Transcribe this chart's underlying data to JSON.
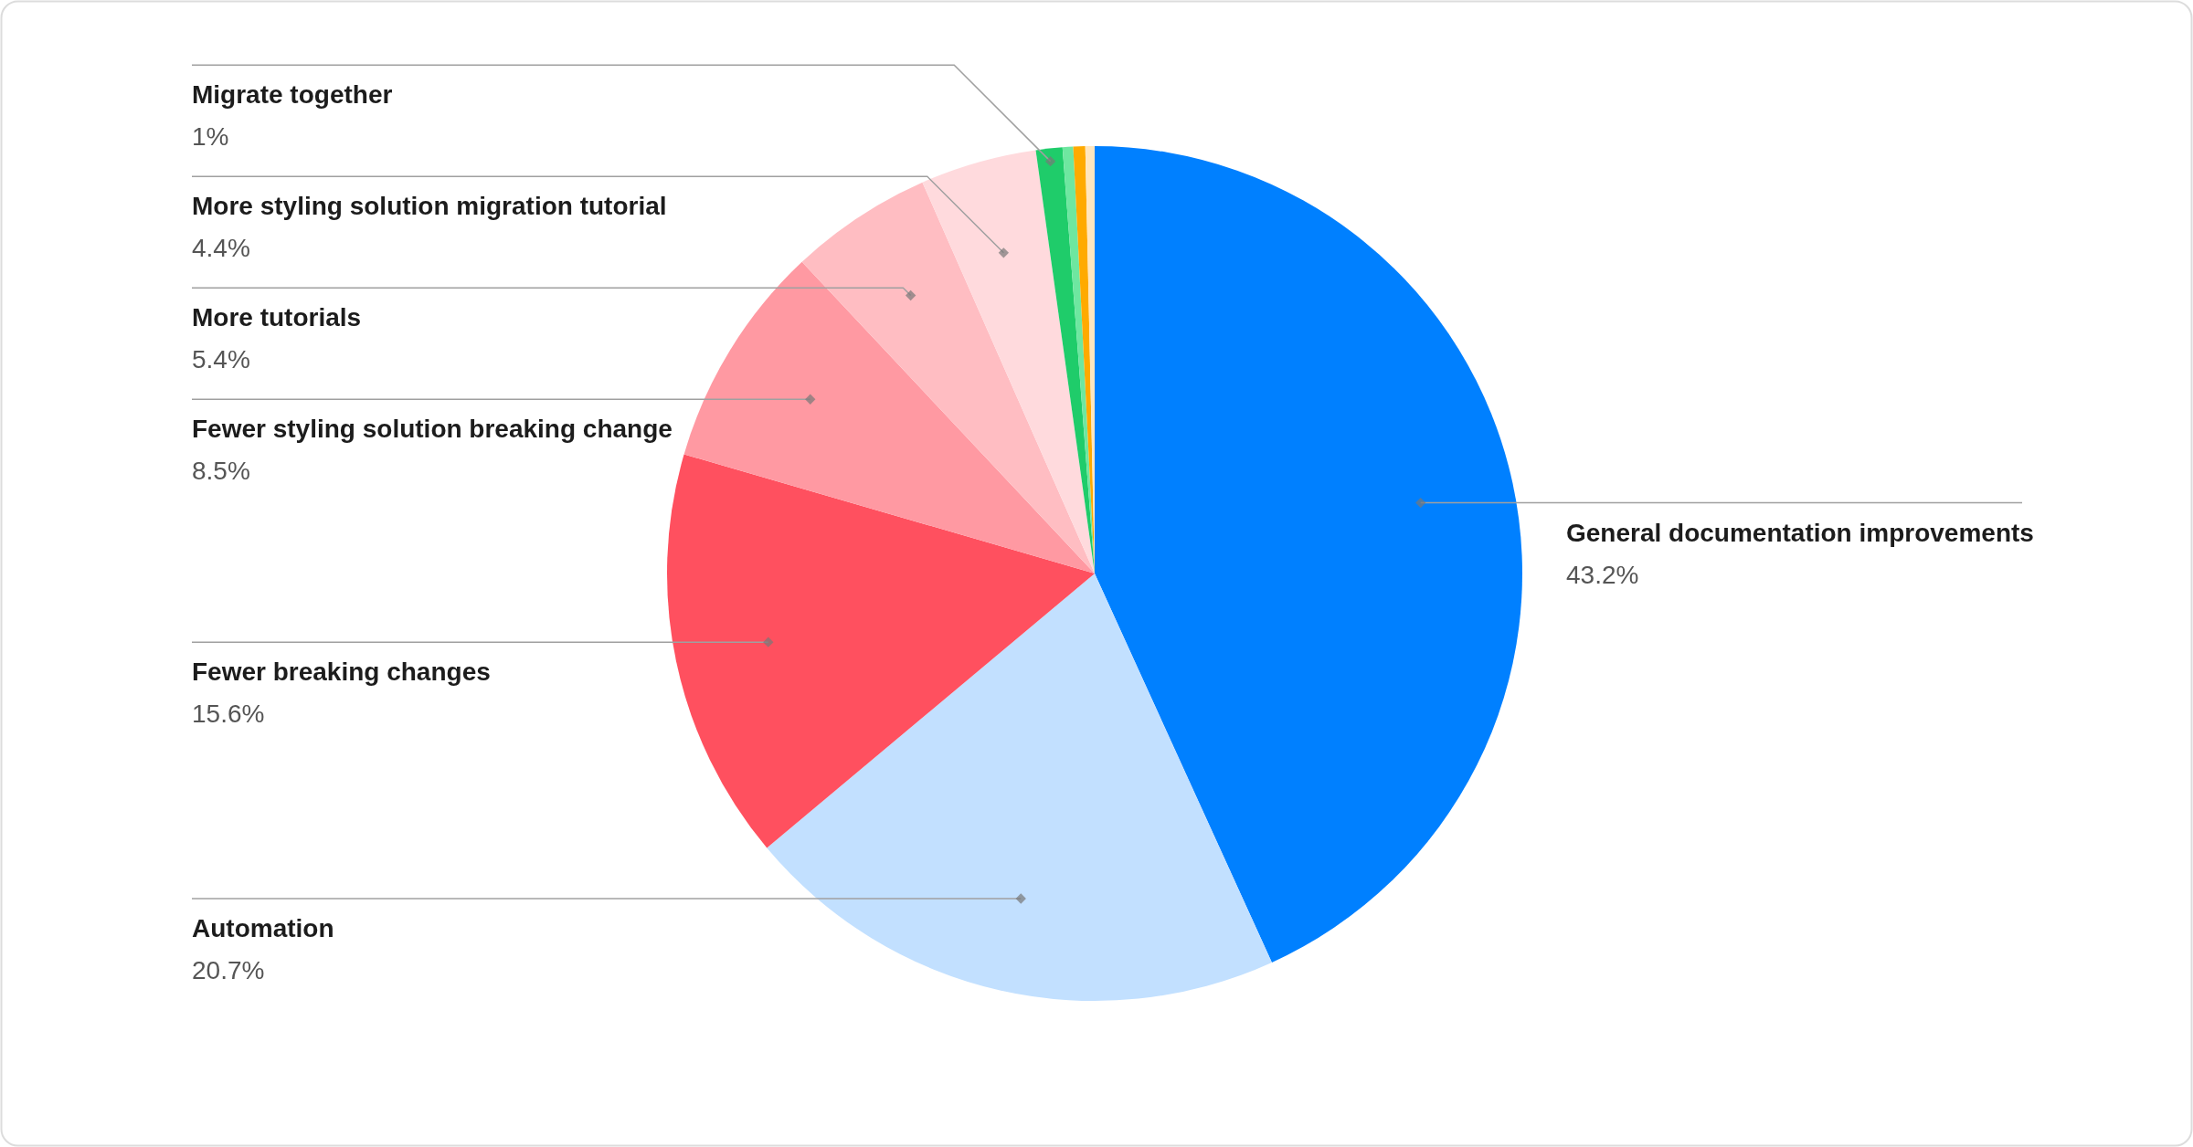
{
  "chart_data": {
    "type": "pie",
    "categories": [
      "General documentation improvements",
      "Automation",
      "Fewer breaking changes",
      "Fewer styling solution breaking change",
      "More tutorials",
      "More styling solution migration tutorial",
      "Migrate together",
      null,
      null,
      null
    ],
    "values": [
      43.2,
      20.7,
      15.6,
      8.5,
      5.4,
      4.4,
      1,
      0.4,
      0.45,
      0.35
    ],
    "value_labels": [
      "43.2%",
      "20.7%",
      "15.6%",
      "8.5%",
      "5.4%",
      "4.4%",
      "1%",
      null,
      null,
      null
    ],
    "colors": [
      "#0080ff",
      "#c2e0ff",
      "#ff505f",
      "#ff99a2",
      "#ffbdc2",
      "#ffdadd",
      "#1fcc6a",
      "#6ee7a0",
      "#ffaa00",
      "#ffe6bf"
    ],
    "legend": false
  }
}
